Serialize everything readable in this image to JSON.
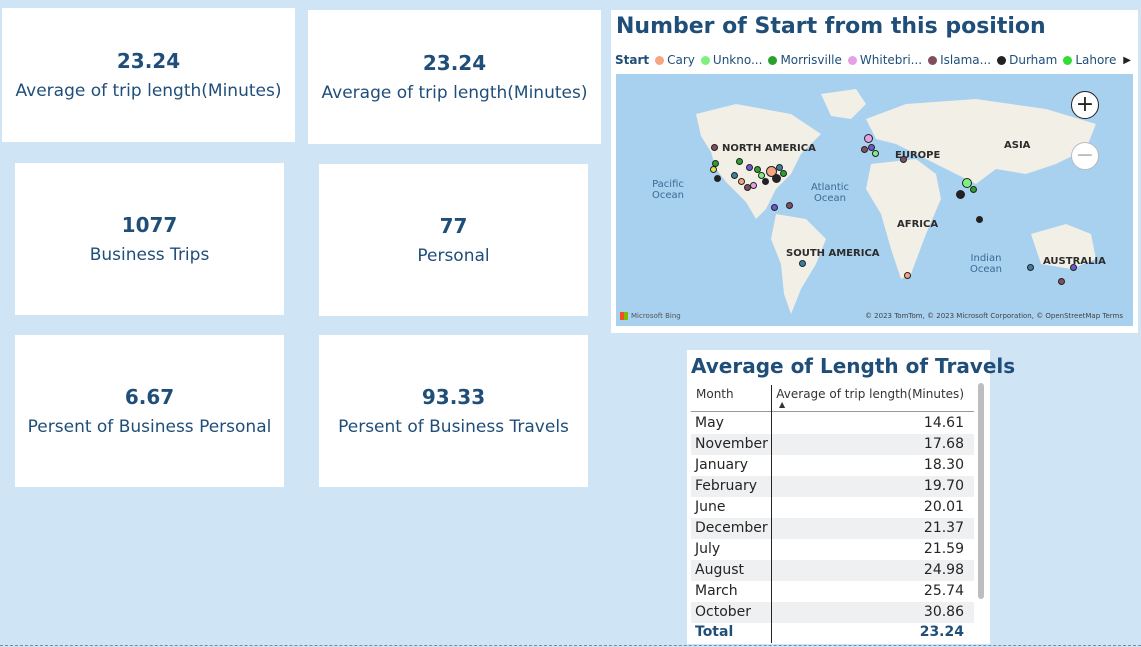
{
  "cards": {
    "avg_trip_1": {
      "value": "23.24",
      "label": "Average of trip length(Minutes)"
    },
    "avg_trip_2": {
      "value": "23.24",
      "label": "Average of trip length(Minutes)"
    },
    "business_trips": {
      "value": "1077",
      "label": "Business Trips"
    },
    "personal": {
      "value": "77",
      "label": "Personal"
    },
    "pct_business_personal": {
      "value": "6.67",
      "label": "Persent of Business Personal"
    },
    "pct_business_travels": {
      "value": "93.33",
      "label": "Persent of Business Travels"
    }
  },
  "map": {
    "title": "Number of Start from this position",
    "legend_title": "Start",
    "legend": [
      {
        "label": "Cary",
        "color": "#f4a582"
      },
      {
        "label": "Unkno...",
        "color": "#7ef07e"
      },
      {
        "label": "Morrisville",
        "color": "#2ca02c"
      },
      {
        "label": "Whitebri...",
        "color": "#e6a0e6"
      },
      {
        "label": "Islama...",
        "color": "#7f4f5f"
      },
      {
        "label": "Durham",
        "color": "#222222"
      },
      {
        "label": "Lahore",
        "color": "#33dd33"
      }
    ],
    "legend_next_icon": "triangle-right-icon",
    "continents": [
      "NORTH AMERICA",
      "EUROPE",
      "ASIA",
      "AFRICA",
      "SOUTH AMERICA",
      "AUSTRALIA"
    ],
    "oceans": [
      "Pacific Ocean",
      "Atlantic Ocean",
      "Indian Ocean"
    ],
    "zoom_in_icon": "+",
    "zoom_out_icon": "−",
    "bing_logo": "Microsoft Bing",
    "copyright": "© 2023 TomTom, © 2023 Microsoft Corporation, © OpenStreetMap  Terms"
  },
  "table": {
    "title": "Average of Length of Travels",
    "headers": {
      "month": "Month",
      "avg": "Average of trip length(Minutes)"
    },
    "sort_icon": "▲",
    "rows": [
      {
        "month": "May",
        "value": "14.61"
      },
      {
        "month": "November",
        "value": "17.68"
      },
      {
        "month": "January",
        "value": "18.30"
      },
      {
        "month": "February",
        "value": "19.70"
      },
      {
        "month": "June",
        "value": "20.01"
      },
      {
        "month": "December",
        "value": "21.37"
      },
      {
        "month": "July",
        "value": "21.59"
      },
      {
        "month": "August",
        "value": "24.98"
      },
      {
        "month": "March",
        "value": "25.74"
      },
      {
        "month": "October",
        "value": "30.86"
      }
    ],
    "total": {
      "label": "Total",
      "value": "23.24"
    }
  }
}
